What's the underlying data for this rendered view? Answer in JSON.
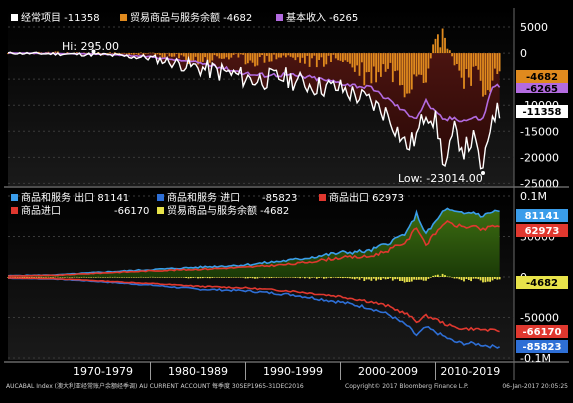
{
  "chart_data": [
    {
      "type": "area",
      "legend": [
        {
          "label": "经常项目 -11358",
          "color": "#ffffff"
        },
        {
          "label": "贸易商品与服务余额 -4682",
          "color": "#e08a1e"
        },
        {
          "label": "基本收入 -6265",
          "color": "#b36be0"
        }
      ],
      "y_ticks": [
        "5000",
        "0",
        "-5000",
        "-10000",
        "-15000",
        "-20000",
        "-25000"
      ],
      "ylim": [
        -25500,
        7500
      ],
      "series": [
        {
          "name": "经常项目",
          "color": "#ffffff",
          "x": [
            1965,
            1970,
            1975,
            1980,
            1985,
            1988,
            1991,
            1994,
            1997,
            2000,
            2003,
            2005,
            2007,
            2008,
            2009,
            2010,
            2011,
            2012,
            2013,
            2014,
            2015,
            2016
          ],
          "values": [
            0,
            -150,
            -300,
            -900,
            -2800,
            -3800,
            -5200,
            -4600,
            -6200,
            -6800,
            -9200,
            -11800,
            -18000,
            -16000,
            -11000,
            -13000,
            -22000,
            -15000,
            -18500,
            -16500,
            -23014,
            -11358
          ]
        },
        {
          "name": "贸易商品与服务余额",
          "color": "#e08a1e",
          "x": [
            1965,
            1970,
            1975,
            1980,
            1985,
            1988,
            1991,
            1994,
            1997,
            2000,
            2003,
            2005,
            2007,
            2008,
            2009,
            2010,
            2011,
            2012,
            2013,
            2014,
            2015,
            2016
          ],
          "values": [
            0,
            50,
            -100,
            -200,
            -1500,
            -800,
            -1500,
            -600,
            -1800,
            -1000,
            -4500,
            -2500,
            -6500,
            -3000,
            -3500,
            2500,
            3500,
            -2000,
            -4500,
            -3500,
            -7500,
            -4682
          ]
        },
        {
          "name": "基本收入",
          "color": "#b36be0",
          "x": [
            1965,
            1970,
            1975,
            1980,
            1985,
            1988,
            1991,
            1994,
            1997,
            2000,
            2003,
            2005,
            2007,
            2008,
            2009,
            2010,
            2011,
            2012,
            2013,
            2014,
            2015,
            2016
          ],
          "values": [
            0,
            -100,
            -200,
            -700,
            -1800,
            -3000,
            -4200,
            -4100,
            -4700,
            -5700,
            -6600,
            -8800,
            -11600,
            -12300,
            -9200,
            -11500,
            -12800,
            -12400,
            -12900,
            -12400,
            -12600,
            -6265
          ]
        }
      ],
      "last_values": {
        "orange": "-4682",
        "purple": "-6265",
        "white": "-11358"
      },
      "annotations": {
        "hi": "Hi: 295.00",
        "low": "Low: -23014.00"
      }
    },
    {
      "type": "area",
      "legend": [
        {
          "label": "商品和服务 出口 81141",
          "color": "#3a9dea"
        },
        {
          "label": "商品和服务 进口",
          "value": "-85823",
          "color": "#2e6fd6"
        },
        {
          "label": "商品出口 62973",
          "color": "#e0382f"
        },
        {
          "label": "商品进口",
          "value": "-66170",
          "color": "#e0382f"
        },
        {
          "label": "贸易商品与服务余额 -4682",
          "color": "#e8e34a"
        }
      ],
      "y_ticks": [
        "0.1M",
        "50000",
        "0",
        "-50000",
        "-0.1M"
      ],
      "ylim": [
        -100000,
        100000
      ],
      "series": [
        {
          "name": "商品和服务 出口",
          "color": "#3a9dea",
          "x": [
            1965,
            1970,
            1975,
            1980,
            1985,
            1990,
            1995,
            2000,
            2003,
            2005,
            2007,
            2008,
            2009,
            2010,
            2011,
            2012,
            2013,
            2014,
            2015,
            2016
          ],
          "values": [
            1500,
            2500,
            6000,
            9000,
            12000,
            15000,
            21000,
            30000,
            32000,
            42000,
            55000,
            78000,
            53000,
            68000,
            84000,
            80000,
            78000,
            80000,
            75000,
            81141
          ]
        },
        {
          "name": "商品和服务 进口",
          "color": "#2e6fd6",
          "x": [
            1965,
            1970,
            1975,
            1980,
            1985,
            1990,
            1995,
            2000,
            2003,
            2005,
            2007,
            2008,
            2009,
            2010,
            2011,
            2012,
            2013,
            2014,
            2015,
            2016
          ],
          "values": [
            -1500,
            -2500,
            -6000,
            -10000,
            -15000,
            -17000,
            -22000,
            -31000,
            -38000,
            -46000,
            -60000,
            -72000,
            -62000,
            -68000,
            -74000,
            -80000,
            -82000,
            -82000,
            -84000,
            -85823
          ]
        },
        {
          "name": "商品出口",
          "color": "#e0382f",
          "x": [
            1965,
            1970,
            1975,
            1980,
            1985,
            1990,
            1995,
            2000,
            2003,
            2005,
            2007,
            2008,
            2009,
            2010,
            2011,
            2012,
            2013,
            2014,
            2015,
            2016
          ],
          "values": [
            1200,
            2000,
            5000,
            7500,
            9500,
            12000,
            16000,
            24000,
            25000,
            33000,
            44000,
            62000,
            40000,
            54000,
            68000,
            64000,
            62000,
            62000,
            58000,
            62973
          ]
        },
        {
          "name": "商品进口",
          "color": "#e0382f",
          "x": [
            1965,
            1970,
            1975,
            1980,
            1985,
            1990,
            1995,
            2000,
            2003,
            2005,
            2007,
            2008,
            2009,
            2010,
            2011,
            2012,
            2013,
            2014,
            2015,
            2016
          ],
          "values": [
            -1200,
            -2000,
            -5000,
            -8000,
            -11500,
            -13500,
            -17500,
            -24000,
            -30000,
            -36000,
            -46000,
            -55000,
            -48000,
            -52000,
            -58000,
            -62000,
            -64000,
            -64000,
            -65000,
            -66170
          ]
        }
      ],
      "last_values": {
        "export": "81141",
        "goods_export": "62973",
        "balance": "-4682",
        "goods_import": "-66170",
        "import": "-85823"
      },
      "categories": [
        "1970-1979",
        "1980-1989",
        "1990-1999",
        "2000-2009",
        "2010-2019"
      ]
    }
  ],
  "footer": {
    "left": "AUCABAL Index (澳大利亚经常账户余额经季调) AU CURRENT ACCOUNT  每季度 30SEP1965-31DEC2016",
    "middle": "Copyright© 2017 Bloomberg Finance L.P.",
    "right": "06-Jan-2017 20:05:25"
  }
}
